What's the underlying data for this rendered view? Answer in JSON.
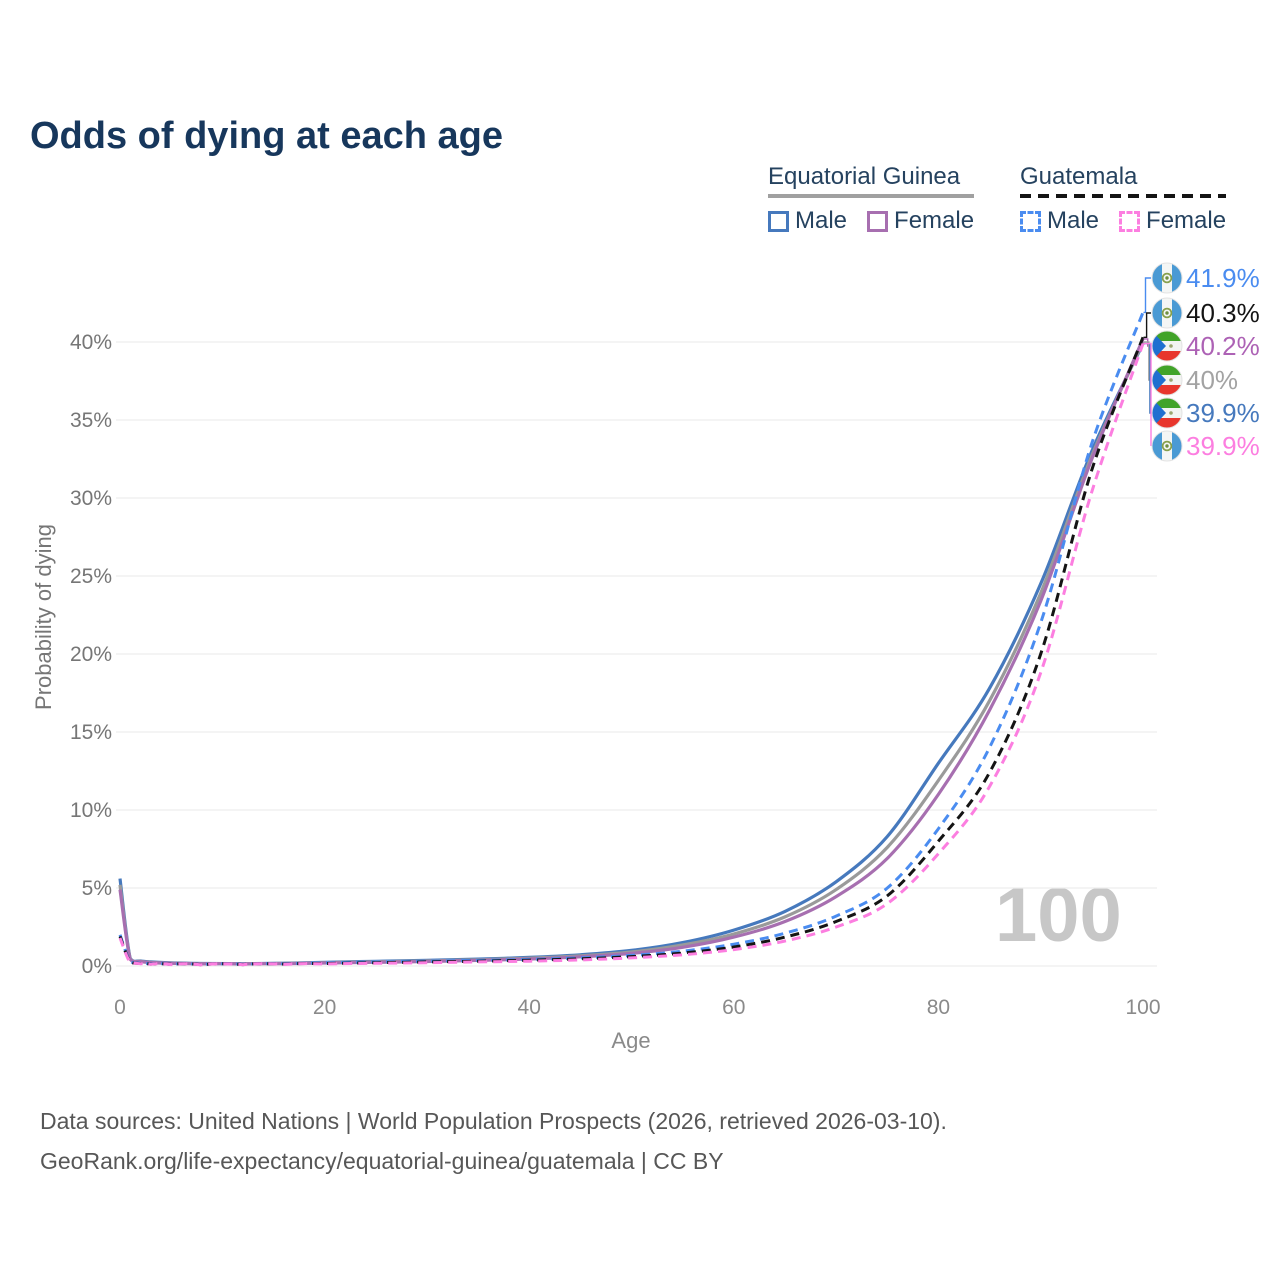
{
  "title": "Odds of dying at each age",
  "watermark": "100",
  "legend": {
    "groups": [
      {
        "name": "Equatorial Guinea",
        "line_style": "solid",
        "underline_color": "#a0a0a0",
        "items": [
          {
            "label": "Male",
            "color": "#4679bd"
          },
          {
            "label": "Female",
            "color": "#a76fb0"
          }
        ]
      },
      {
        "name": "Guatemala",
        "line_style": "dashed",
        "underline_color": "#141414",
        "items": [
          {
            "label": "Male",
            "color": "#4a8cf0"
          },
          {
            "label": "Female",
            "color": "#fc7ee0"
          }
        ]
      }
    ]
  },
  "axes": {
    "x": {
      "title": "Age",
      "ticks": [
        0,
        20,
        40,
        60,
        80,
        100
      ]
    },
    "y": {
      "title": "Probability of dying",
      "ticks": [
        "0%",
        "5%",
        "10%",
        "15%",
        "20%",
        "25%",
        "30%",
        "35%",
        "40%"
      ]
    }
  },
  "footer": {
    "line1": "Data sources: United Nations | World Population Prospects (2026, retrieved 2026-03-10).",
    "line2": "GeoRank.org/life-expectancy/equatorial-guinea/guatemala | CC BY"
  },
  "chart_data": {
    "type": "line",
    "xlabel": "Age",
    "ylabel": "Probability of dying",
    "xlim": [
      0,
      100
    ],
    "ylim_percent": [
      0,
      45
    ],
    "grid": true,
    "legend_position": "top-right",
    "x_ages": [
      0,
      1,
      2,
      3,
      5,
      8,
      12,
      16,
      20,
      25,
      30,
      35,
      40,
      45,
      50,
      55,
      60,
      65,
      70,
      75,
      80,
      85,
      90,
      95,
      100
    ],
    "series": [
      {
        "name": "Equatorial Guinea Male",
        "country": "equatorial-guinea",
        "sex": "male",
        "color": "#4679bd",
        "dashed": false,
        "values_percent": [
          5.6,
          0.5,
          0.32,
          0.26,
          0.2,
          0.16,
          0.15,
          0.18,
          0.24,
          0.3,
          0.36,
          0.44,
          0.55,
          0.72,
          1.0,
          1.5,
          2.3,
          3.5,
          5.4,
          8.3,
          13.0,
          17.8,
          24.5,
          33.0,
          39.9
        ],
        "end_label": {
          "text": "39.9%",
          "color": "#4679bd"
        }
      },
      {
        "name": "Equatorial Guinea Both sexes",
        "country": "equatorial-guinea",
        "sex": "both",
        "color": "#9a9a9a",
        "dashed": false,
        "values_percent": [
          5.2,
          0.46,
          0.3,
          0.24,
          0.18,
          0.15,
          0.14,
          0.16,
          0.21,
          0.27,
          0.32,
          0.4,
          0.5,
          0.65,
          0.9,
          1.35,
          2.05,
          3.15,
          4.9,
          7.6,
          11.9,
          17.0,
          23.9,
          32.7,
          40.0
        ],
        "end_label": {
          "text": "40%",
          "color": "#a3a3a3"
        }
      },
      {
        "name": "Equatorial Guinea Female",
        "country": "equatorial-guinea",
        "sex": "female",
        "color": "#a76fb0",
        "dashed": false,
        "values_percent": [
          4.9,
          0.43,
          0.28,
          0.22,
          0.17,
          0.14,
          0.13,
          0.15,
          0.19,
          0.24,
          0.29,
          0.36,
          0.45,
          0.59,
          0.81,
          1.2,
          1.85,
          2.85,
          4.45,
          6.9,
          11.0,
          16.4,
          23.4,
          32.5,
          40.2
        ],
        "end_label": {
          "text": "40.2%",
          "color": "#ad62b5"
        }
      },
      {
        "name": "Guatemala Male",
        "country": "guatemala",
        "sex": "male",
        "color": "#4a8cf0",
        "dashed": true,
        "values_percent": [
          2.0,
          0.28,
          0.18,
          0.14,
          0.11,
          0.09,
          0.1,
          0.14,
          0.2,
          0.26,
          0.31,
          0.36,
          0.42,
          0.52,
          0.68,
          0.95,
          1.4,
          2.1,
          3.2,
          5.0,
          8.8,
          14.0,
          22.0,
          33.5,
          41.9
        ],
        "end_label": {
          "text": "41.9%",
          "color": "#4a8cf0"
        }
      },
      {
        "name": "Guatemala Both sexes",
        "country": "guatemala",
        "sex": "both",
        "color": "#141414",
        "dashed": true,
        "values_percent": [
          1.9,
          0.25,
          0.16,
          0.12,
          0.1,
          0.08,
          0.09,
          0.12,
          0.16,
          0.21,
          0.26,
          0.31,
          0.37,
          0.46,
          0.6,
          0.83,
          1.22,
          1.85,
          2.85,
          4.5,
          8.0,
          12.4,
          20.0,
          31.8,
          40.3
        ],
        "end_label": {
          "text": "40.3%",
          "color": "#141414"
        }
      },
      {
        "name": "Guatemala Female",
        "country": "guatemala",
        "sex": "female",
        "color": "#fc7ee0",
        "dashed": true,
        "values_percent": [
          1.8,
          0.23,
          0.15,
          0.11,
          0.09,
          0.07,
          0.08,
          0.1,
          0.13,
          0.17,
          0.21,
          0.26,
          0.31,
          0.39,
          0.52,
          0.72,
          1.05,
          1.6,
          2.5,
          4.0,
          7.2,
          11.5,
          18.8,
          30.4,
          39.9
        ],
        "end_label": {
          "text": "39.9%",
          "color": "#fc7ee0"
        }
      }
    ]
  }
}
